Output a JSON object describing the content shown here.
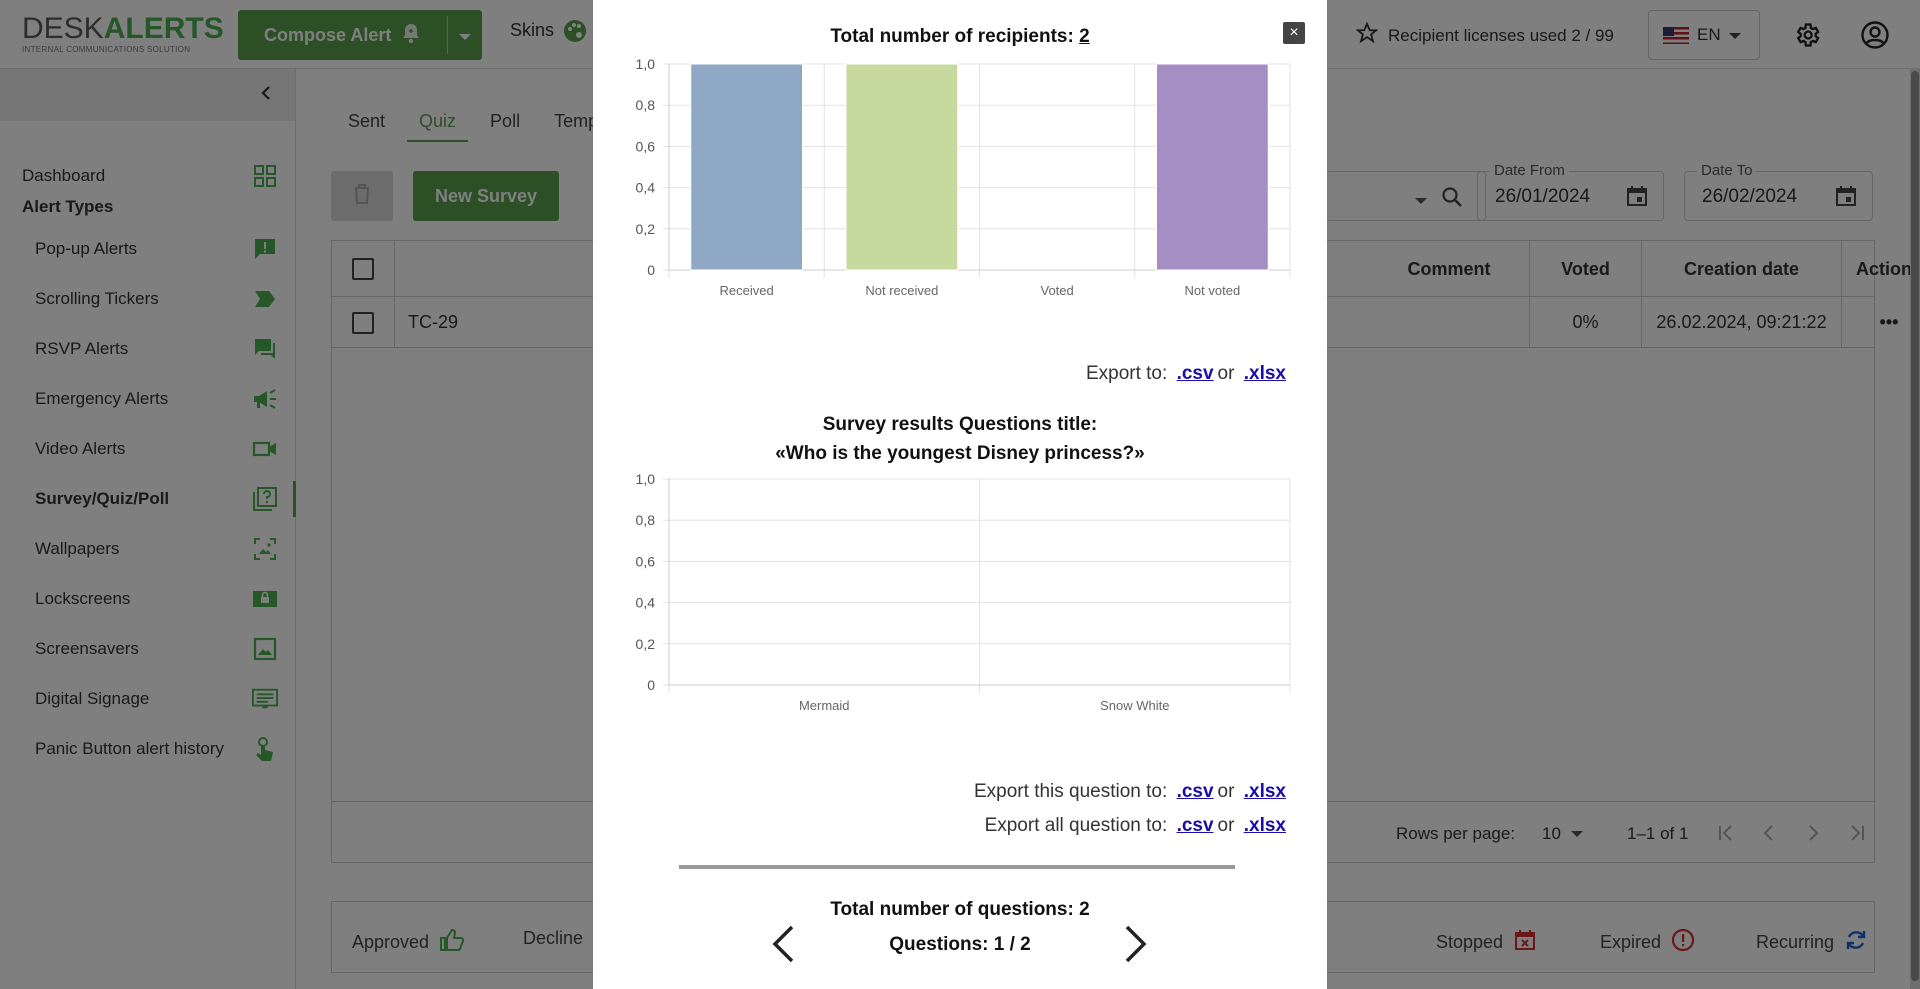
{
  "header": {
    "logo_desk": "DESK",
    "logo_alerts": "ALERTS",
    "logo_tagline": "INTERNAL COMMUNICATIONS SOLUTION",
    "compose_label": "Compose Alert",
    "skins_label": "Skins",
    "licenses_label": "Recipient licenses used 2 / 99",
    "language": "EN"
  },
  "sidebar": {
    "dashboard": "Dashboard",
    "section_title": "Alert Types",
    "items": [
      {
        "label": "Pop-up Alerts",
        "icon": "popup-alert-icon"
      },
      {
        "label": "Scrolling Tickers",
        "icon": "ticker-icon"
      },
      {
        "label": "RSVP Alerts",
        "icon": "rsvp-icon"
      },
      {
        "label": "Emergency Alerts",
        "icon": "megaphone-icon"
      },
      {
        "label": "Video Alerts",
        "icon": "video-icon"
      },
      {
        "label": "Survey/Quiz/Poll",
        "icon": "survey-icon"
      },
      {
        "label": "Wallpapers",
        "icon": "wallpaper-icon"
      },
      {
        "label": "Lockscreens",
        "icon": "lockscreen-icon"
      },
      {
        "label": "Screensavers",
        "icon": "screensaver-icon"
      },
      {
        "label": "Digital Signage",
        "icon": "signage-icon"
      },
      {
        "label": "Panic Button alert history",
        "icon": "panic-button-icon"
      }
    ],
    "active": "Survey/Quiz/Poll"
  },
  "main": {
    "tabs": [
      "Sent",
      "Quiz",
      "Poll",
      "Temp"
    ],
    "active_tab": "Quiz",
    "new_survey_label": "New Survey",
    "date_from_label": "Date From",
    "date_from_value": "26/01/2024",
    "date_to_label": "Date To",
    "date_to_value": "26/02/2024",
    "columns": {
      "comment": "Comment",
      "voted": "Voted",
      "creation_date": "Creation date",
      "actions": "Actions"
    },
    "rows": [
      {
        "title": "TC-29",
        "voted": "0%",
        "creation_date": "26.02.2024, 09:21:22",
        "actions": "•••"
      }
    ],
    "rows_per_page_label": "Rows per page:",
    "rows_per_page": "10",
    "range": "1–1 of 1",
    "legend": {
      "approved": "Approved",
      "decline": "Decline",
      "stopped": "Stopped",
      "expired": "Expired",
      "recurring": "Recurring"
    }
  },
  "modal": {
    "recipients_label": "Total number of recipients:",
    "recipients_value": "2",
    "export_label": "Export to:",
    "or": "or",
    "csv": ".csv",
    "xlsx": ".xlsx",
    "survey_title_line1": "Survey results Questions title:",
    "survey_title_line2": "«Who is the youngest Disney princess?»",
    "export_question_label": "Export this question to:",
    "export_all_label": "Export all question to:",
    "total_questions": "Total number of questions: 2",
    "questions_counter": "Questions: 1 / 2",
    "close": "×"
  },
  "chart_data": [
    {
      "type": "bar",
      "categories": [
        "Received",
        "Not received",
        "Voted",
        "Not voted"
      ],
      "values": [
        1,
        1,
        0,
        1
      ],
      "counts": [
        "1",
        "1",
        "0",
        "1"
      ],
      "colors": [
        "#8fa8c6",
        "#c6da9f",
        "#c5c5c5",
        "#a58ec4"
      ],
      "ylim": [
        0,
        1
      ],
      "yticks": [
        "1,0",
        "0,8",
        "0,6",
        "0,4",
        "0,2",
        "0"
      ],
      "grid": true
    },
    {
      "type": "bar",
      "categories": [
        "Mermaid",
        "Snow White"
      ],
      "values": [
        0,
        0
      ],
      "counts": [
        "0",
        "0"
      ],
      "ylim": [
        0,
        1
      ],
      "yticks": [
        "1,0",
        "0,8",
        "0,6",
        "0,4",
        "0,2",
        "0"
      ],
      "grid": true
    }
  ]
}
